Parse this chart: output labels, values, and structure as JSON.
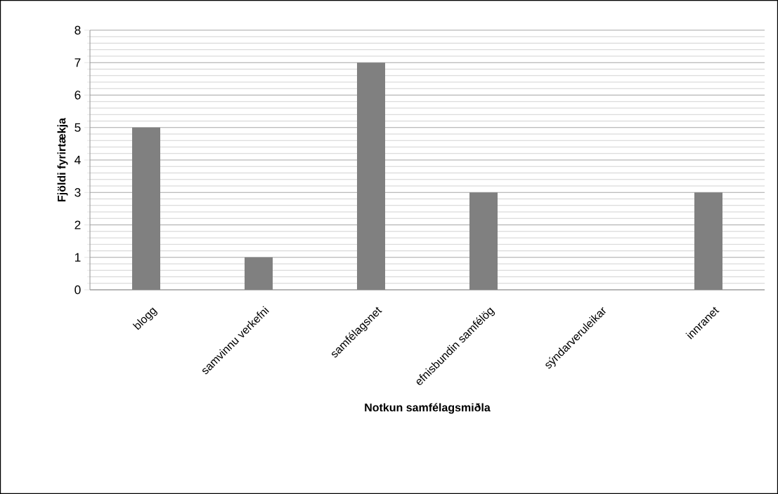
{
  "chart_data": {
    "type": "bar",
    "xlabel": "Notkun samfélagsmiðla",
    "ylabel": "Fjöldi fyrirtækja",
    "categories": [
      "blogg",
      "samvinnu verkefni",
      "samfélagsnet",
      "efnisbundin samfélög",
      "sýndarveruleikar",
      "innranet"
    ],
    "values": [
      5,
      1,
      7,
      3,
      0,
      3
    ],
    "color": "#808080",
    "ylim": [
      0,
      8
    ],
    "yticks": [
      0,
      1,
      2,
      3,
      4,
      5,
      6,
      7,
      8
    ],
    "grid": "y"
  }
}
